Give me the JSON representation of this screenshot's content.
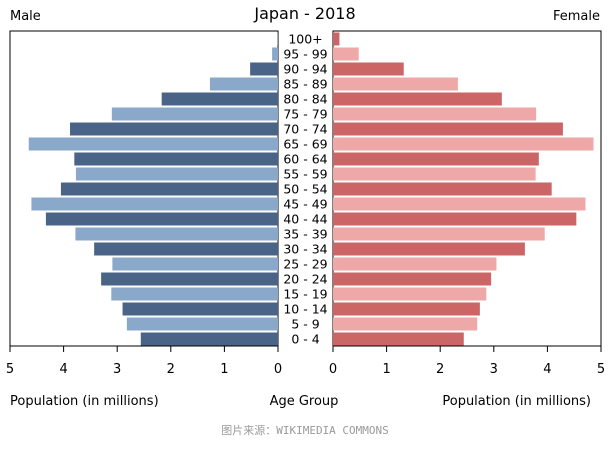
{
  "chart_data": {
    "type": "bar",
    "subtype": "population-pyramid",
    "title": "Japan - 2018",
    "left_label": "Male",
    "right_label": "Female",
    "xlabel_left": "Population (in millions)",
    "xlabel_center": "Age Group",
    "xlabel_right": "Population (in millions)",
    "xlim": [
      0,
      5
    ],
    "x_ticks": [
      "0",
      "1",
      "2",
      "3",
      "4",
      "5"
    ],
    "categories": [
      "0 - 4",
      "5 - 9",
      "10 - 14",
      "15 - 19",
      "20 - 24",
      "25 - 29",
      "30 - 34",
      "35 - 39",
      "40 - 44",
      "45 - 49",
      "50 - 54",
      "55 - 59",
      "60 - 64",
      "65 - 69",
      "70 - 74",
      "75 - 79",
      "80 - 84",
      "85 - 89",
      "90 - 94",
      "95 - 99",
      "100+"
    ],
    "series": [
      {
        "name": "Male",
        "values": [
          2.56,
          2.82,
          2.9,
          3.11,
          3.3,
          3.09,
          3.43,
          3.78,
          4.33,
          4.6,
          4.05,
          3.77,
          3.8,
          4.65,
          3.88,
          3.1,
          2.17,
          1.27,
          0.52,
          0.11,
          0.01
        ]
      },
      {
        "name": "Female",
        "values": [
          2.44,
          2.69,
          2.74,
          2.86,
          2.95,
          3.05,
          3.58,
          3.95,
          4.54,
          4.71,
          4.08,
          3.78,
          3.84,
          4.86,
          4.29,
          3.79,
          3.15,
          2.33,
          1.32,
          0.48,
          0.12
        ]
      }
    ],
    "colors": {
      "male_dark": "#4a6487",
      "male_light": "#8aa8ca",
      "female_dark": "#cc6666",
      "female_light": "#efa8a8"
    }
  },
  "source_text": "图片来源：WIKIMEDIA COMMONS"
}
